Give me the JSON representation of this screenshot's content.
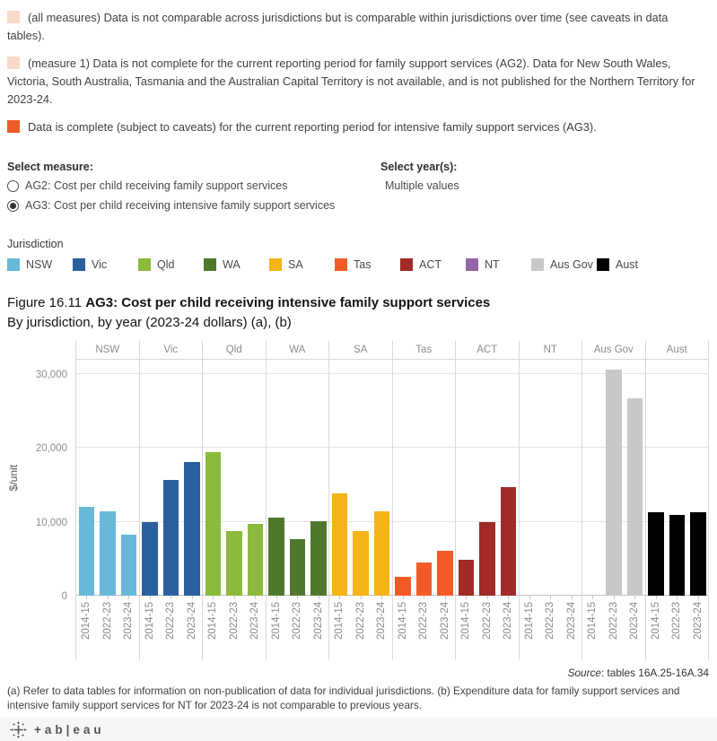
{
  "caveats": [
    {
      "swatch_color": "#f9d9c8",
      "text": "(all measures) Data is not comparable across jurisdictions but is comparable within jurisdictions over time (see caveats in data tables)."
    },
    {
      "swatch_color": "#f9d9c8",
      "text": "(measure 1) Data is not complete for the current reporting period for family support services (AG2). Data for New South Wales, Victoria, South Australia, Tasmania and the Australian Capital Territory is not available, and is not published for the Northern Territory for 2023-24."
    },
    {
      "swatch_color": "#ef5a28",
      "text": "Data is complete (subject to caveats) for the current reporting period for intensive family support services (AG3)."
    }
  ],
  "controls": {
    "measure_label": "Select measure:",
    "measure_options": [
      {
        "label": "AG2: Cost per child receiving family support services",
        "selected": false
      },
      {
        "label": "AG3: Cost per child receiving intensive family support services",
        "selected": true
      }
    ],
    "years_label": "Select year(s):",
    "years_value": "Multiple values"
  },
  "legend": {
    "title": "Jurisdiction"
  },
  "figure": {
    "number": "Figure 16.11 ",
    "title": "AG3: Cost per child receiving intensive family support services",
    "subtitle": "By jurisdiction, by year (2023-24 dollars) (a), (b)"
  },
  "chart_data": {
    "type": "bar",
    "title": "AG3: Cost per child receiving intensive family support services",
    "ylabel": "$/unit",
    "ylim": [
      0,
      31900
    ],
    "grid": true,
    "legend_position": "top",
    "yticks": [
      {
        "value": 0,
        "label": "0"
      },
      {
        "value": 10000,
        "label": "10,000"
      },
      {
        "value": 20000,
        "label": "20,000"
      },
      {
        "value": 30000,
        "label": "30,000"
      }
    ],
    "categories": [
      "2014-15",
      "2022-23",
      "2023-24"
    ],
    "series": [
      {
        "name": "NSW",
        "color": "#68b9d8",
        "values": [
          12050,
          11350,
          8200
        ]
      },
      {
        "name": "Vic",
        "color": "#2b5f9e",
        "values": [
          10000,
          15600,
          18100
        ]
      },
      {
        "name": "Qld",
        "color": "#8cba3c",
        "values": [
          19400,
          8700,
          9750
        ]
      },
      {
        "name": "WA",
        "color": "#50782c",
        "values": [
          10500,
          7600,
          10050
        ]
      },
      {
        "name": "SA",
        "color": "#f5b417",
        "values": [
          13800,
          8800,
          11350
        ]
      },
      {
        "name": "Tas",
        "color": "#f25b28",
        "values": [
          2550,
          4500,
          6100
        ]
      },
      {
        "name": "ACT",
        "color": "#a02b27",
        "values": [
          4800,
          10000,
          14700
        ]
      },
      {
        "name": "NT",
        "color": "#9566a7",
        "values": [
          null,
          null,
          null
        ]
      },
      {
        "name": "Aus Gov",
        "color": "#c8c8c8",
        "values": [
          null,
          30550,
          26700
        ]
      },
      {
        "name": "Aust",
        "color": "#000000",
        "values": [
          11300,
          10900,
          11300
        ]
      }
    ]
  },
  "source": {
    "label": "Source",
    "text": ": tables 16A.25-16A.34"
  },
  "footnotes": "(a) Refer to data tables for information on non-publication of data for individual jurisdictions. (b) Expenditure data for family support services and intensive family support services for NT for 2023-24 is not comparable to previous years.",
  "footer": {
    "logo_text": "+ab|eau"
  }
}
